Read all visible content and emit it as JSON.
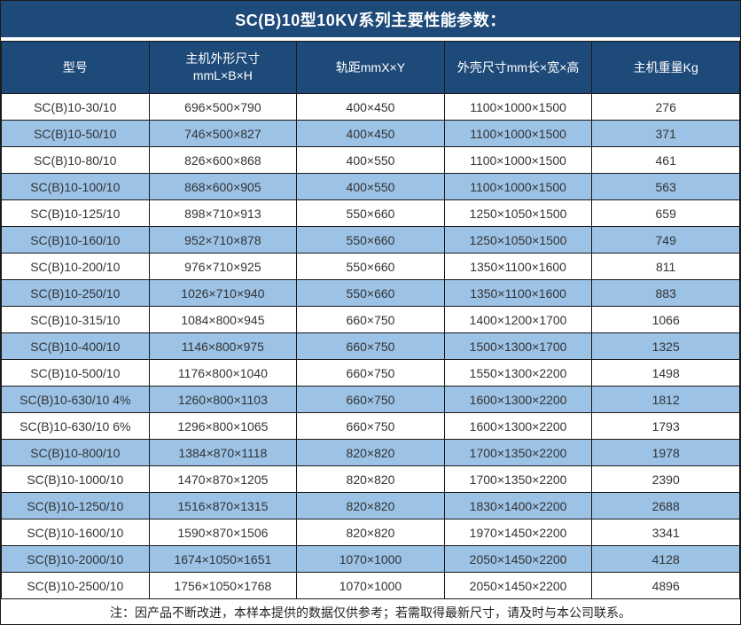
{
  "title": "SC(B)10型10KV系列主要性能参数：",
  "colors": {
    "header_bg": "#1E4A7A",
    "header_text": "#FFFFFF",
    "row_bg": "#FFFFFF",
    "row_alt_bg": "#9CC2E6",
    "border": "#1A1A1A",
    "body_text": "#333333"
  },
  "table": {
    "columns": [
      {
        "label": "型号"
      },
      {
        "label": "主机外形尺寸",
        "label2": "mmL×B×H"
      },
      {
        "label": "轨距mmX×Y"
      },
      {
        "label": "外壳尺寸mm长×宽×高"
      },
      {
        "label": "主机重量Kg"
      }
    ],
    "rows": [
      [
        "SC(B)10-30/10",
        "696×500×790",
        "400×450",
        "1100×1000×1500",
        "276"
      ],
      [
        "SC(B)10-50/10",
        "746×500×827",
        "400×450",
        "1100×1000×1500",
        "371"
      ],
      [
        "SC(B)10-80/10",
        "826×600×868",
        "400×550",
        "1100×1000×1500",
        "461"
      ],
      [
        "SC(B)10-100/10",
        "868×600×905",
        "400×550",
        "1100×1000×1500",
        "563"
      ],
      [
        "SC(B)10-125/10",
        "898×710×913",
        "550×660",
        "1250×1050×1500",
        "659"
      ],
      [
        "SC(B)10-160/10",
        "952×710×878",
        "550×660",
        "1250×1050×1500",
        "749"
      ],
      [
        "SC(B)10-200/10",
        "976×710×925",
        "550×660",
        "1350×1100×1600",
        "811"
      ],
      [
        "SC(B)10-250/10",
        "1026×710×940",
        "550×660",
        "1350×1100×1600",
        "883"
      ],
      [
        "SC(B)10-315/10",
        "1084×800×945",
        "660×750",
        "1400×1200×1700",
        "1066"
      ],
      [
        "SC(B)10-400/10",
        "1146×800×975",
        "660×750",
        "1500×1300×1700",
        "1325"
      ],
      [
        "SC(B)10-500/10",
        "1176×800×1040",
        "660×750",
        "1550×1300×2200",
        "1498"
      ],
      [
        "SC(B)10-630/10 4%",
        "1260×800×1103",
        "660×750",
        "1600×1300×2200",
        "1812"
      ],
      [
        "SC(B)10-630/10 6%",
        "1296×800×1065",
        "660×750",
        "1600×1300×2200",
        "1793"
      ],
      [
        "SC(B)10-800/10",
        "1384×870×1118",
        "820×820",
        "1700×1350×2200",
        "1978"
      ],
      [
        "SC(B)10-1000/10",
        "1470×870×1205",
        "820×820",
        "1700×1350×2200",
        "2390"
      ],
      [
        "SC(B)10-1250/10",
        "1516×870×1315",
        "820×820",
        "1830×1400×2200",
        "2688"
      ],
      [
        "SC(B)10-1600/10",
        "1590×870×1506",
        "820×820",
        "1970×1450×2200",
        "3341"
      ],
      [
        "SC(B)10-2000/10",
        "1674×1050×1651",
        "1070×1000",
        "2050×1450×2200",
        "4128"
      ],
      [
        "SC(B)10-2500/10",
        "1756×1050×1768",
        "1070×1000",
        "2050×1450×2200",
        "4896"
      ]
    ]
  },
  "note": "注：因产品不断改进，本样本提供的数据仅供参考；若需取得最新尺寸，请及时与本公司联系。"
}
